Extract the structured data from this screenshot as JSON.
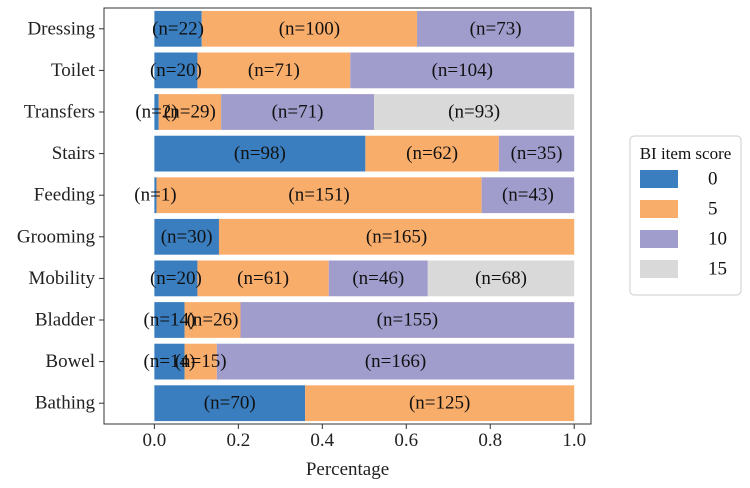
{
  "chart_data": {
    "type": "bar",
    "orientation": "horizontal",
    "stacked": "percent",
    "categories": [
      "Dressing",
      "Toilet",
      "Transfers",
      "Stairs",
      "Feeding",
      "Grooming",
      "Mobility",
      "Bladder",
      "Bowel",
      "Bathing"
    ],
    "series": [
      {
        "name": "0",
        "color": "#3a7ebf",
        "counts": [
          22,
          20,
          2,
          98,
          1,
          30,
          20,
          14,
          14,
          70
        ],
        "labels": [
          "(n=22)",
          "(n=20)",
          "(n=2)",
          "(n=98)",
          "(n=1)",
          "(n=30)",
          "(n=20)",
          "(n=14)",
          "(n=14)",
          "(n=70)"
        ]
      },
      {
        "name": "5",
        "color": "#f9ad6b",
        "counts": [
          100,
          71,
          29,
          62,
          151,
          165,
          61,
          26,
          15,
          125
        ],
        "labels": [
          "(n=100)",
          "(n=71)",
          "(n=29)",
          "(n=62)",
          "(n=151)",
          "(n=165)",
          "(n=61)",
          "(n=26)",
          "(n=15)",
          "(n=125)"
        ]
      },
      {
        "name": "10",
        "color": "#a09ccb",
        "counts": [
          73,
          104,
          71,
          35,
          43,
          0,
          46,
          155,
          166,
          0
        ],
        "labels": [
          "(n=73)",
          "(n=104)",
          "(n=71)",
          "(n=35)",
          "(n=43)",
          "",
          "(n=46)",
          "(n=155)",
          "(n=166)",
          ""
        ]
      },
      {
        "name": "15",
        "color": "#d9d9d9",
        "counts": [
          0,
          0,
          93,
          0,
          0,
          0,
          68,
          0,
          0,
          0
        ],
        "labels": [
          "",
          "",
          "(n=93)",
          "",
          "",
          "",
          "(n=68)",
          "",
          "",
          ""
        ]
      }
    ],
    "xlabel": "Percentage",
    "ylabel": "",
    "xlim": [
      -0.12,
      1.04
    ],
    "xticks": [
      "0.0",
      "0.2",
      "0.4",
      "0.6",
      "0.8",
      "1.0"
    ],
    "legend": {
      "title": "BI item score",
      "entries": [
        "0",
        "5",
        "10",
        "15"
      ],
      "position": "right"
    }
  }
}
